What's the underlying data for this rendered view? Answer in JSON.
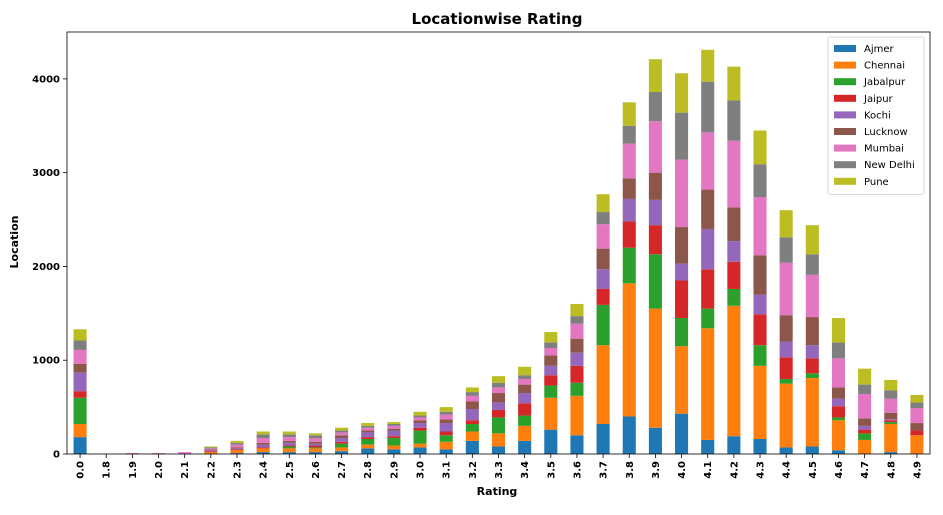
{
  "chart_data": {
    "type": "bar",
    "stacked": true,
    "title": "Locationwise Rating",
    "xlabel": "Rating",
    "ylabel": "Location",
    "ylim": [
      0,
      4500
    ],
    "yticks": [
      0,
      1000,
      2000,
      3000,
      4000
    ],
    "grid": false,
    "legend_position": "top-right",
    "categories": [
      "0.0",
      "1.8",
      "1.9",
      "2.0",
      "2.1",
      "2.2",
      "2.3",
      "2.4",
      "2.5",
      "2.6",
      "2.7",
      "2.8",
      "2.9",
      "3.0",
      "3.1",
      "3.2",
      "3.3",
      "3.4",
      "3.5",
      "3.6",
      "3.7",
      "3.8",
      "3.9",
      "4.0",
      "4.1",
      "4.2",
      "4.3",
      "4.4",
      "4.5",
      "4.6",
      "4.7",
      "4.8",
      "4.9"
    ],
    "series": [
      {
        "name": "Ajmer",
        "color": "#1f77b4",
        "values": [
          180,
          0,
          0,
          0,
          0,
          0,
          10,
          20,
          20,
          20,
          30,
          60,
          50,
          70,
          50,
          140,
          80,
          140,
          260,
          200,
          320,
          400,
          280,
          430,
          150,
          190,
          160,
          70,
          80,
          40,
          0,
          20,
          0
        ]
      },
      {
        "name": "Chennai",
        "color": "#ff7f0e",
        "values": [
          140,
          0,
          0,
          0,
          0,
          20,
          30,
          40,
          40,
          40,
          40,
          40,
          40,
          40,
          80,
          100,
          140,
          160,
          340,
          420,
          840,
          1420,
          1270,
          720,
          1190,
          1390,
          780,
          680,
          730,
          320,
          150,
          300,
          200
        ]
      },
      {
        "name": "Jabalpur",
        "color": "#2ca02c",
        "values": [
          280,
          0,
          0,
          0,
          0,
          0,
          0,
          0,
          20,
          10,
          40,
          60,
          80,
          140,
          70,
          80,
          170,
          110,
          130,
          140,
          430,
          380,
          580,
          300,
          210,
          180,
          220,
          50,
          50,
          30,
          70,
          20,
          0
        ]
      },
      {
        "name": "Jaipur",
        "color": "#d62728",
        "values": [
          70,
          0,
          0,
          0,
          0,
          10,
          10,
          10,
          10,
          20,
          20,
          20,
          20,
          30,
          40,
          40,
          80,
          130,
          110,
          180,
          170,
          280,
          310,
          400,
          420,
          290,
          330,
          230,
          160,
          120,
          40,
          20,
          50
        ]
      },
      {
        "name": "Kochi",
        "color": "#9467bd",
        "values": [
          200,
          0,
          0,
          0,
          0,
          10,
          10,
          30,
          30,
          20,
          40,
          50,
          60,
          50,
          90,
          120,
          80,
          110,
          100,
          140,
          210,
          240,
          270,
          180,
          430,
          220,
          210,
          170,
          140,
          80,
          40,
          10,
          0
        ]
      },
      {
        "name": "Lucknow",
        "color": "#8c564b",
        "values": [
          90,
          0,
          0,
          0,
          0,
          10,
          10,
          20,
          20,
          20,
          30,
          20,
          20,
          30,
          40,
          80,
          100,
          90,
          110,
          150,
          220,
          220,
          290,
          390,
          420,
          360,
          420,
          280,
          300,
          120,
          80,
          70,
          80
        ]
      },
      {
        "name": "Mumbai",
        "color": "#e377c2",
        "values": [
          150,
          0,
          10,
          10,
          20,
          10,
          30,
          50,
          40,
          40,
          30,
          30,
          30,
          30,
          50,
          60,
          60,
          60,
          80,
          160,
          260,
          370,
          550,
          720,
          610,
          710,
          620,
          560,
          450,
          310,
          260,
          150,
          160
        ]
      },
      {
        "name": "New Delhi",
        "color": "#7f7f7f",
        "values": [
          100,
          0,
          0,
          0,
          0,
          10,
          20,
          40,
          30,
          30,
          20,
          20,
          20,
          20,
          30,
          40,
          50,
          40,
          60,
          80,
          130,
          190,
          310,
          500,
          540,
          430,
          350,
          270,
          220,
          170,
          100,
          90,
          60
        ]
      },
      {
        "name": "Pune",
        "color": "#bcbd22",
        "values": [
          120,
          0,
          0,
          0,
          0,
          10,
          20,
          30,
          30,
          20,
          30,
          30,
          20,
          40,
          50,
          50,
          70,
          90,
          110,
          130,
          190,
          250,
          350,
          420,
          340,
          360,
          360,
          290,
          310,
          260,
          170,
          110,
          80
        ]
      }
    ]
  }
}
